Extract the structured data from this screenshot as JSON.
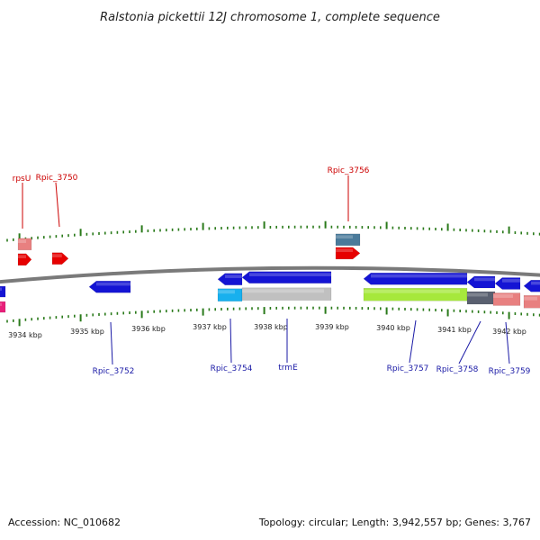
{
  "title": "Ralstonia pickettii 12J chromosome 1, complete sequence",
  "footer": {
    "accession": "Accession: NC_010682",
    "summary": "Topology: circular; Length: 3,942,557 bp; Genes: 3,767"
  },
  "colors": {
    "backbone": "#7a7a7a",
    "tick": "#2a7a1a",
    "cds": "#1414d4",
    "rna": "#e60000",
    "trna_light": "#e88080",
    "steel": "#4a7a9a",
    "cyan": "#18b0ee",
    "grey": "#c0c0c0",
    "lime": "#a6e83c",
    "dark": "#5a6070",
    "pink_strip": "#e8207a",
    "label_top": "#cc0000",
    "label_bottom": "#1a1aa6"
  },
  "scale": {
    "tick_labels": [
      "3934 kbp",
      "3935 kbp",
      "3936 kbp",
      "3937 kbp",
      "3938 kbp",
      "3939 kbp",
      "3940 kbp",
      "3941 kbp",
      "3942 kbp"
    ]
  },
  "gene_labels": {
    "top": [
      "rpsU",
      "Rpic_3750",
      "Rpic_3756"
    ],
    "bottom": [
      "Rpic_3752",
      "Rpic_3754",
      "trmE",
      "Rpic_3757",
      "Rpic_3758",
      "Rpic_3759"
    ]
  },
  "features": [
    {
      "name": "rpsU",
      "color_key": "trna_light"
    },
    {
      "name": "rpsU",
      "color_key": "rna"
    },
    {
      "name": "Rpic_3750",
      "color_key": "rna"
    },
    {
      "name": "Rpic_3756",
      "color_key": "steel"
    },
    {
      "name": "Rpic_3756",
      "color_key": "rna"
    },
    {
      "name": "Rpic_3752",
      "color_key": "cds"
    },
    {
      "name": "Rpic_3754",
      "color_key": "cds"
    },
    {
      "name": "Rpic_3754",
      "color_key": "cyan"
    },
    {
      "name": "trmE",
      "color_key": "cds"
    },
    {
      "name": "trmE",
      "color_key": "grey"
    },
    {
      "name": "Rpic_3757",
      "color_key": "cds"
    },
    {
      "name": "Rpic_3757",
      "color_key": "lime"
    },
    {
      "name": "Rpic_3758",
      "color_key": "cds"
    },
    {
      "name": "Rpic_3758",
      "color_key": "dark"
    },
    {
      "name": "Rpic_3759",
      "color_key": "cds"
    },
    {
      "name": "Rpic_3759",
      "color_key": "trna_light"
    }
  ]
}
